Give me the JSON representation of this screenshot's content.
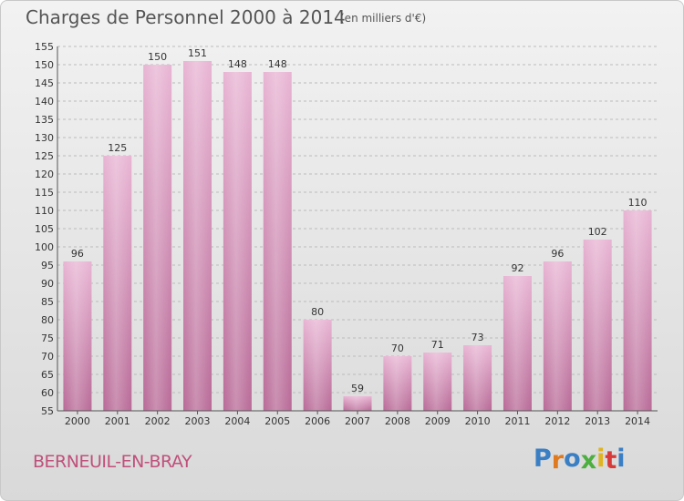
{
  "header": {
    "title": "Charges de Personnel 2000 à 2014",
    "subtitle": "(en milliers d'€)"
  },
  "footer": {
    "commune": "BERNEUIL-EN-BRAY",
    "logo_letters": [
      "P",
      "r",
      "o",
      "x",
      "i",
      "t",
      "i"
    ],
    "logo_colors": [
      "#3a7fc4",
      "#e07a1f",
      "#3a7fc4",
      "#4caf3f",
      "#e0b41f",
      "#d83a3a",
      "#3a7fc4"
    ]
  },
  "colors": {
    "bar_light": "#e8b4d3",
    "bar_dark": "#b86a97",
    "grid": "#bbbbbb"
  },
  "chart_data": {
    "type": "bar",
    "title": "Charges de Personnel 2000 à 2014",
    "subtitle": "(en milliers d'€)",
    "categories": [
      "2000",
      "2001",
      "2002",
      "2003",
      "2004",
      "2005",
      "2006",
      "2007",
      "2008",
      "2009",
      "2010",
      "2011",
      "2012",
      "2013",
      "2014"
    ],
    "values": [
      96,
      125,
      150,
      151,
      148,
      148,
      80,
      59,
      70,
      71,
      73,
      92,
      96,
      102,
      110
    ],
    "value_labels": [
      "96",
      "125",
      "150",
      "151",
      "148",
      "148",
      "80",
      "59",
      "70",
      "71",
      "73",
      "92",
      "96",
      "102",
      "110"
    ],
    "ylim": [
      55,
      155
    ],
    "yticks": [
      "55",
      "60",
      "65",
      "70",
      "75",
      "80",
      "85",
      "90",
      "95",
      "100",
      "105",
      "110",
      "115",
      "120",
      "125",
      "130",
      "135",
      "140",
      "145",
      "150",
      "155"
    ],
    "grid": true,
    "xlabel": "",
    "ylabel": ""
  }
}
